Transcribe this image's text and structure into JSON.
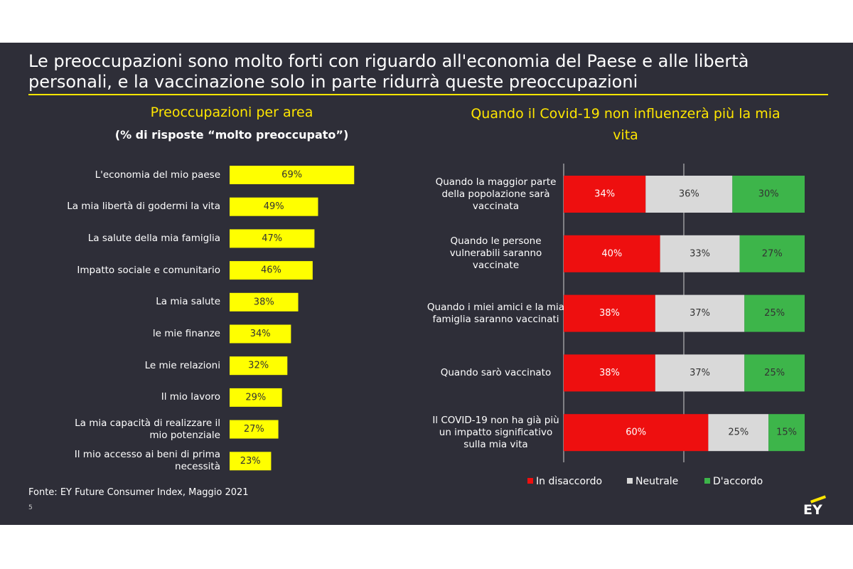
{
  "title": "Le preoccupazioni sono molto forti con riguardo all'economia del Paese e alle libertà personali, e la vaccinazione solo in parte ridurrà queste preoccupazioni",
  "source": "Fonte: EY Future Consumer Index, Maggio 2021",
  "page_number": "5",
  "logo": "EY",
  "chart_data": [
    {
      "type": "bar",
      "title": "Preoccupazioni per area",
      "subtitle": "(% di risposte “molto preoccupato”)",
      "categories": [
        "L'economia del mio paese",
        "La mia libertà di godermi la vita",
        "La salute della mia famiglia",
        "Impatto sociale e comunitario",
        "La mia salute",
        "le mie finanze",
        "Le mie relazioni",
        "Il mio lavoro",
        "La mia capacità di realizzare il mio potenziale",
        "Il mio accesso ai beni di prima necessità"
      ],
      "values": [
        69,
        49,
        47,
        46,
        38,
        34,
        32,
        29,
        27,
        23
      ],
      "value_labels": [
        "69%",
        "49%",
        "47%",
        "46%",
        "38%",
        "34%",
        "32%",
        "29%",
        "27%",
        "23%"
      ],
      "color": "#ffff00"
    },
    {
      "type": "stacked_bar",
      "title": "Quando il Covid-19 non influenzerà più la mia vita",
      "categories": [
        "Quando la maggior parte della popolazione sarà vaccinata",
        "Quando le persone vulnerabili saranno vaccinate",
        "Quando i miei amici e la mia famiglia saranno vaccinati",
        "Quando sarò vaccinato",
        "Il COVID-19 non ha già più un impatto significativo sulla mia vita"
      ],
      "series": [
        {
          "name": "In disaccordo",
          "color": "#ee0f0f",
          "values": [
            34,
            40,
            38,
            38,
            60
          ],
          "value_labels": [
            "34%",
            "40%",
            "38%",
            "38%",
            "60%"
          ]
        },
        {
          "name": "Neutrale",
          "color": "#d9d9d9",
          "values": [
            36,
            33,
            37,
            37,
            25
          ],
          "value_labels": [
            "36%",
            "33%",
            "37%",
            "37%",
            "25%"
          ]
        },
        {
          "name": "D'accordo",
          "color": "#3db54a",
          "values": [
            30,
            27,
            25,
            25,
            15
          ],
          "value_labels": [
            "30%",
            "27%",
            "25%",
            "25%",
            "15%"
          ]
        }
      ],
      "legend": "bottom"
    }
  ]
}
